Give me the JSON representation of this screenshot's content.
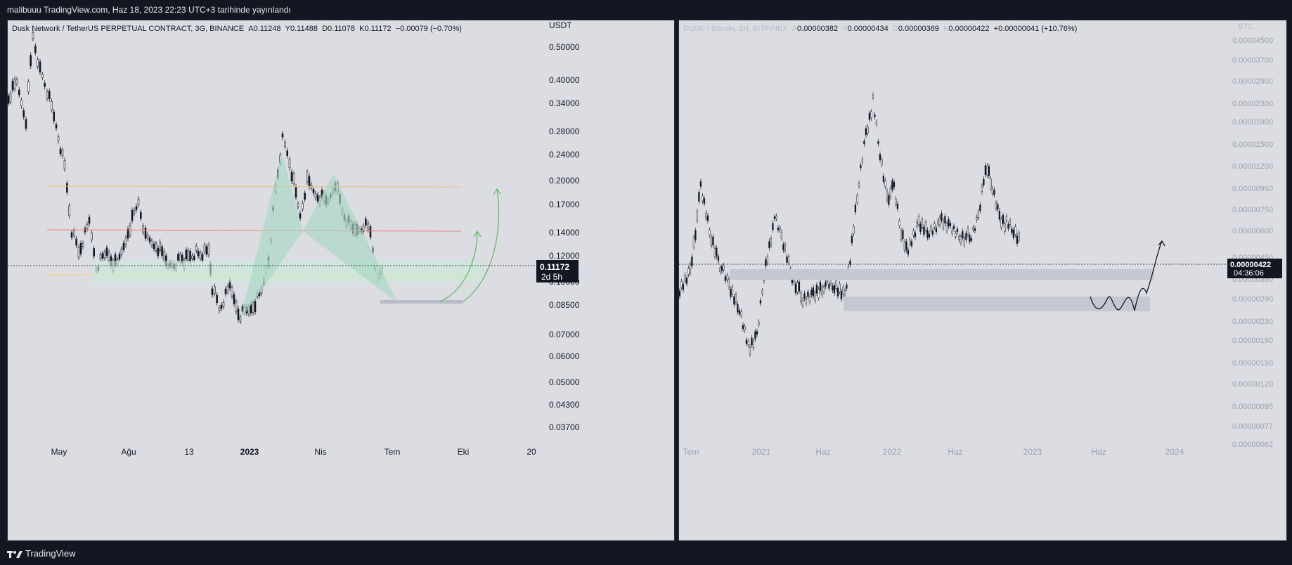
{
  "header": {
    "published_text": "malibuuu TradingView.com, Haz 18, 2023 22:23 UTC+3 tarihinde yayınlandı"
  },
  "footer": {
    "brand": "TradingView"
  },
  "left_chart": {
    "legend_symbol": "Dusk Network / TetherUS PERPETUAL CONTRACT, 3G, BINANCE",
    "ohlc": {
      "o_label": "A",
      "o": "0.11248",
      "h_label": "Y",
      "h": "0.11488",
      "l_label": "D",
      "l": "0.11078",
      "c_label": "K",
      "c": "0.11172",
      "change": "−0.00079 (−0.70%)"
    },
    "currency": "USDT",
    "price_labels": [
      "0.50000",
      "0.40000",
      "0.34000",
      "0.28000",
      "0.24000",
      "0.20000",
      "0.17000",
      "0.14000",
      "0.12000",
      "0.10000",
      "0.08500",
      "0.07000",
      "0.06000",
      "0.05000",
      "0.04300",
      "0.03700"
    ],
    "current_price": "0.11172",
    "countdown": "2d 5h",
    "time_labels": [
      "May",
      "Ağu",
      "13",
      "2023",
      "Nis",
      "Tem",
      "Eki",
      "20"
    ],
    "colors": {
      "fib_orange": "#f0c27b",
      "fib_red": "#f28b82",
      "fib_yellow": "#f5d36b",
      "harmonic": "#a7d7c5",
      "arrow": "#66bb6a",
      "zone": "#c8ebd6"
    }
  },
  "right_chart": {
    "legend_symbol": "DUSK / Bitcoin, 1H, BITFINEX",
    "ohlc": {
      "o_label": "A",
      "o": "0.00000382",
      "h_label": "Y",
      "h": "0.00000434",
      "l_label": "D",
      "l": "0.00000369",
      "c_label": "K",
      "c": "0.00000422",
      "change": "+0.00000041 (+10.76%)"
    },
    "currency": "BTC",
    "price_labels": [
      "0.00004500",
      "0.00003700",
      "0.00002900",
      "0.00002300",
      "0.00001900",
      "0.00001500",
      "0.00001200",
      "0.00000950",
      "0.00000750",
      "0.00000600",
      "0.00000450",
      "0.00000350",
      "0.00000290",
      "0.00000230",
      "0.00000190",
      "0.00000150",
      "0.00000120",
      "0.00000095",
      "0.00000077",
      "0.00000062"
    ],
    "current_price": "0.00000422",
    "countdown": "04:36:06",
    "time_labels": [
      "Tem",
      "2021",
      "Haz",
      "2022",
      "Haz",
      "2023",
      "Haz",
      "2024"
    ],
    "colors": {
      "zone": "#c6c8d1"
    }
  }
}
